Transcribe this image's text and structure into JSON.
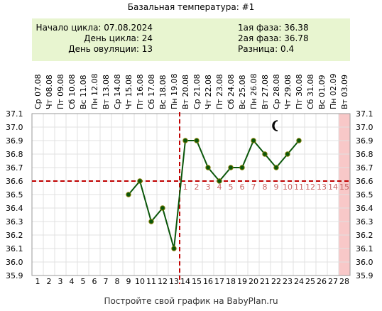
{
  "chart_data": {
    "type": "line",
    "title": "Базальная температура: #1",
    "info_left": [
      {
        "label": "Начало цикла",
        "value": "07.08.2024"
      },
      {
        "label": "День цикла",
        "value": "24"
      },
      {
        "label": "День овуляции",
        "value": "13"
      }
    ],
    "info_right": [
      {
        "label": "1ая фаза",
        "value": "36.38"
      },
      {
        "label": "2ая фаза",
        "value": "36.78"
      },
      {
        "label": "Разница",
        "value": "0.4"
      }
    ],
    "day_labels": [
      "Ср",
      "Чт",
      "Пт",
      "Сб",
      "Вс",
      "Пн",
      "Вт",
      "Ср",
      "Чт",
      "Пт",
      "Сб",
      "Вс",
      "Пн",
      "Вт",
      "Ср",
      "Чт",
      "Пт",
      "Сб",
      "Вс",
      "Пн",
      "Вт",
      "Ср",
      "Чт",
      "Пт",
      "Сб",
      "Вс",
      "Пн",
      "Вт"
    ],
    "date_labels": [
      "07.08",
      "08.08",
      "09.08",
      "10.08",
      "11.08",
      "12.08",
      "13.08",
      "14.08",
      "15.08",
      "16.08",
      "17.08",
      "18.08",
      "19.08",
      "20.08",
      "21.08",
      "22.08",
      "23.08",
      "24.08",
      "25.08",
      "26.08",
      "27.08",
      "28.08",
      "29.08",
      "30.08",
      "31.08",
      "01.09",
      "02.09",
      "03.09"
    ],
    "x_labels": [
      "1",
      "2",
      "3",
      "4",
      "5",
      "6",
      "7",
      "8",
      "9",
      "10",
      "11",
      "12",
      "13",
      "14",
      "15",
      "16",
      "17",
      "18",
      "19",
      "20",
      "21",
      "22",
      "23",
      "24",
      "25",
      "26",
      "27",
      "28"
    ],
    "y_ticks": [
      "35.9",
      "36.0",
      "36.1",
      "36.2",
      "36.3",
      "36.4",
      "36.5",
      "36.6",
      "36.7",
      "36.8",
      "36.9",
      "37.0",
      "37.1"
    ],
    "ylim": [
      35.9,
      37.1
    ],
    "xlim": [
      1,
      28
    ],
    "series": [
      {
        "x": [
          9,
          10,
          11,
          12,
          13,
          14,
          15,
          16,
          17,
          18,
          19,
          20,
          21,
          22,
          23,
          24
        ],
        "values": [
          36.5,
          36.6,
          36.3,
          36.4,
          36.1,
          36.9,
          36.9,
          36.7,
          36.6,
          36.7,
          36.7,
          36.9,
          36.8,
          36.7,
          36.8,
          36.9
        ]
      }
    ],
    "ovulation_day": 13,
    "coverline": 36.6,
    "phase2_labels": [
      "1",
      "2",
      "3",
      "4",
      "5",
      "6",
      "7",
      "8",
      "9",
      "10",
      "11",
      "12",
      "13",
      "14",
      "15"
    ],
    "phase2_start_day": 14,
    "highlight_day": 28,
    "moon_day": 22,
    "moon_value": 37.01,
    "footer": "Постройте свой график на BabyPlan.ru",
    "colors": {
      "line": "#0a560a",
      "marker_stroke": "#7a7a00",
      "coverline": "#c00000",
      "highlight": "#f8c8c8",
      "info_bg": "#e8f5d0",
      "phase2_text": "#c86464",
      "grid": "#e0e0e0"
    }
  }
}
